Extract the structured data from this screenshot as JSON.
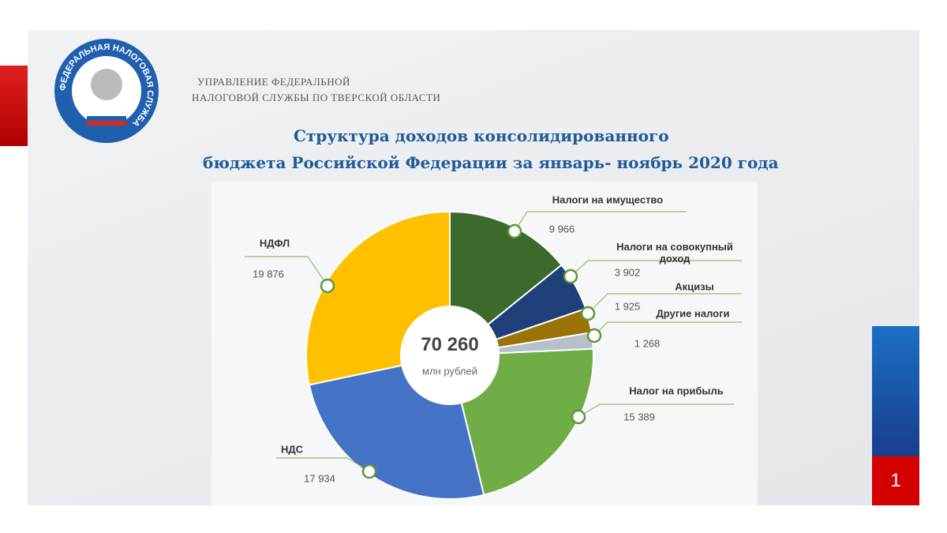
{
  "header": {
    "line1": "УПРАВЛЕНИЕ ФЕДЕРАЛЬНОЙ",
    "line2": "НАЛОГОВОЙ СЛУЖБЫ ПО ТВЕРСКОЙ ОБЛАСТИ",
    "logo_text": "ФЕДЕРАЛЬНАЯ НАЛОГОВАЯ СЛУЖБА"
  },
  "page_number": "1",
  "chart_data": {
    "type": "donut",
    "title": [
      "Структура доходов консолидированного",
      "бюджета Российской Федерации за январь- ноябрь 2020 года"
    ],
    "center_value": "70 260",
    "center_unit": "млн рублей",
    "categories": [
      "Налоги на имущество",
      "Налоги на совокупный доход",
      "Акцизы",
      "Другие налоги",
      "Налог на прибыль",
      "НДС",
      "НДФЛ"
    ],
    "values": [
      9966,
      3902,
      1925,
      1268,
      15389,
      17934,
      19876
    ],
    "value_labels": [
      "9 966",
      "3 902",
      "1 925",
      "1 268",
      "15 389",
      "17 934",
      "19 876"
    ],
    "colors": [
      "#3c6a2c",
      "#1f3f78",
      "#9a7205",
      "#b6bfcb",
      "#70ad47",
      "#4472c4",
      "#ffc000"
    ]
  }
}
